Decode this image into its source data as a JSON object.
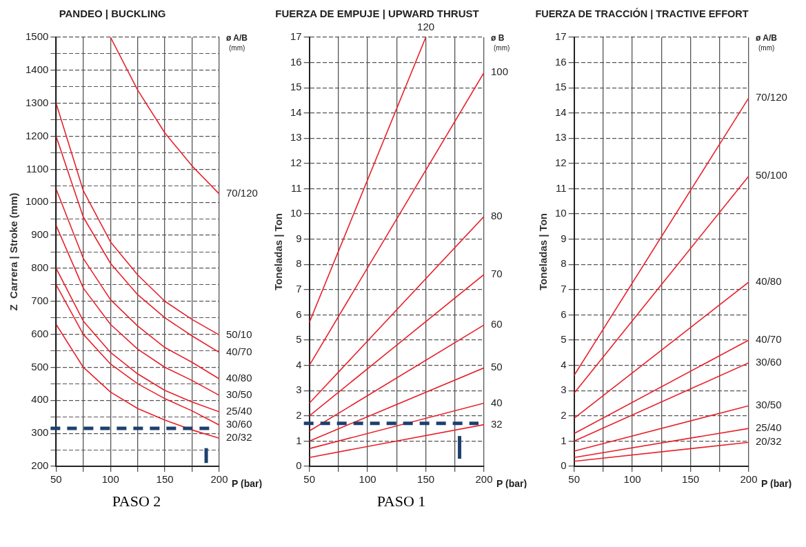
{
  "chart_data": [
    {
      "type": "line",
      "title": "PANDEO | BUCKLING",
      "xlabel": "P (bar)",
      "ylabel": "Z  Carrera | Stroke (mm)",
      "legend_title": "ø A/B (mm)",
      "annotations": [
        "PASO 2"
      ],
      "x": [
        50,
        75,
        100,
        125,
        150,
        175,
        200
      ],
      "xlim": [
        50,
        200
      ],
      "xticks": [
        50,
        {
          "value": 75,
          "label": null
        },
        100,
        {
          "value": 125,
          "label": null
        },
        150,
        {
          "value": 175,
          "label": null
        },
        200
      ],
      "ylim": [
        200,
        1500
      ],
      "yticks": [
        200,
        {
          "value": 250,
          "label": null
        },
        300,
        {
          "value": 350,
          "label": null
        },
        400,
        {
          "value": 450,
          "label": null
        },
        500,
        {
          "value": 550,
          "label": null
        },
        600,
        {
          "value": 650,
          "label": null
        },
        700,
        {
          "value": 750,
          "label": null
        },
        800,
        {
          "value": 850,
          "label": null
        },
        900,
        {
          "value": 950,
          "label": null
        },
        1000,
        {
          "value": 1050,
          "label": null
        },
        1100,
        {
          "value": 1150,
          "label": null
        },
        1200,
        {
          "value": 1250,
          "label": null
        },
        1300,
        {
          "value": 1350,
          "label": null
        },
        1400,
        {
          "value": 1450,
          "label": null
        },
        1500
      ],
      "grid": true,
      "legend": false,
      "marker": "none",
      "ref_lines": [
        {
          "axis": "y",
          "value": 315,
          "color": "#1f3f6e",
          "line_style": "dashed"
        }
      ],
      "series": [
        {
          "name": "70/120",
          "color": "#e8202a",
          "x": [
            100,
            125,
            150,
            175,
            200
          ],
          "values": [
            1500,
            1340,
            1210,
            1110,
            1025
          ]
        },
        {
          "name": "50/10",
          "color": "#e8202a",
          "values": [
            1300,
            1035,
            880,
            780,
            700,
            645,
            598
          ]
        },
        {
          "name": "40/70",
          "color": "#e8202a",
          "values": [
            1200,
            955,
            815,
            720,
            650,
            595,
            545
          ]
        },
        {
          "name": "40/80",
          "color": "#e8202a",
          "values": [
            1040,
            830,
            705,
            625,
            560,
            515,
            465
          ]
        },
        {
          "name": "30/50",
          "color": "#e8202a",
          "values": [
            930,
            740,
            630,
            555,
            500,
            460,
            415
          ]
        },
        {
          "name": "25/40",
          "color": "#e8202a",
          "values": [
            800,
            640,
            545,
            480,
            430,
            395,
            365
          ]
        },
        {
          "name": "30/60",
          "color": "#e8202a",
          "values": [
            750,
            600,
            510,
            450,
            405,
            368,
            325
          ]
        },
        {
          "name": "20/32",
          "color": "#e8202a",
          "values": [
            630,
            500,
            425,
            375,
            340,
            310,
            285
          ]
        },
        {
          "color": "#1f3f6e",
          "x": [
            188,
            188
          ],
          "values": [
            210,
            255
          ]
        }
      ]
    },
    {
      "type": "line",
      "title": "FUERZA DE EMPUJE | UPWARD THRUST",
      "xlabel": "P (bar)",
      "ylabel": "Toneladas | Ton",
      "legend_title": "ø B (mm)",
      "annotations": [
        "PASO 1"
      ],
      "x": [
        50,
        200
      ],
      "xlim": [
        50,
        200
      ],
      "xticks": [
        50,
        {
          "value": 75,
          "label": null
        },
        100,
        {
          "value": 125,
          "label": null
        },
        150,
        {
          "value": 175,
          "label": null
        },
        200
      ],
      "ylim": [
        0,
        17
      ],
      "yticks": [
        0,
        1,
        2,
        3,
        4,
        5,
        6,
        7,
        8,
        9,
        10,
        11,
        12,
        13,
        14,
        15,
        16,
        17
      ],
      "grid": true,
      "legend": false,
      "marker": "none",
      "ref_lines": [
        {
          "axis": "y",
          "value": 1.7,
          "color": "#1f3f6e",
          "line_style": "dashed"
        }
      ],
      "series": [
        {
          "name": "120",
          "color": "#e8202a",
          "x": [
            50,
            150
          ],
          "values": [
            5.7,
            17
          ]
        },
        {
          "name": "100",
          "color": "#e8202a",
          "values": [
            4,
            15.6
          ]
        },
        {
          "name": "80",
          "color": "#e8202a",
          "values": [
            2.5,
            9.9
          ]
        },
        {
          "name": "70",
          "color": "#e8202a",
          "values": [
            2,
            7.6
          ]
        },
        {
          "name": "60",
          "color": "#e8202a",
          "values": [
            1.4,
            5.6
          ]
        },
        {
          "name": "50",
          "color": "#e8202a",
          "values": [
            1,
            3.9
          ]
        },
        {
          "name": "40",
          "color": "#e8202a",
          "values": [
            0.7,
            2.5
          ]
        },
        {
          "name": "32",
          "color": "#e8202a",
          "values": [
            0.35,
            1.65
          ]
        },
        {
          "color": "#1f3f6e",
          "x": [
            179,
            179
          ],
          "values": [
            0.3,
            1.2
          ]
        }
      ]
    },
    {
      "type": "line",
      "title": "FUERZA DE TRACCIÓN | TRACTIVE EFFORT",
      "xlabel": "P (bar)",
      "ylabel": "Toneladas | Ton",
      "legend_title": "ø A/B (mm)",
      "x": [
        50,
        200
      ],
      "xlim": [
        50,
        200
      ],
      "xticks": [
        50,
        {
          "value": 75,
          "label": null
        },
        100,
        {
          "value": 125,
          "label": null
        },
        150,
        {
          "value": 175,
          "label": null
        },
        200
      ],
      "ylim": [
        0,
        17
      ],
      "yticks": [
        0,
        1,
        2,
        3,
        4,
        5,
        6,
        7,
        8,
        9,
        10,
        11,
        12,
        13,
        14,
        15,
        16,
        17
      ],
      "grid": true,
      "legend": false,
      "marker": "none",
      "series": [
        {
          "name": "70/120",
          "color": "#e8202a",
          "values": [
            3.6,
            14.6
          ]
        },
        {
          "name": "50/100",
          "color": "#e8202a",
          "values": [
            2.9,
            11.5
          ]
        },
        {
          "name": "40/80",
          "color": "#e8202a",
          "values": [
            1.9,
            7.3
          ]
        },
        {
          "name": "40/70",
          "color": "#e8202a",
          "values": [
            1.3,
            5
          ]
        },
        {
          "name": "30/60",
          "color": "#e8202a",
          "values": [
            1,
            4.1
          ]
        },
        {
          "name": "30/50",
          "color": "#e8202a",
          "values": [
            0.6,
            2.4
          ]
        },
        {
          "name": "25/40",
          "color": "#e8202a",
          "values": [
            0.35,
            1.5
          ]
        },
        {
          "name": "20/32",
          "color": "#e8202a",
          "values": [
            0.2,
            0.95
          ]
        }
      ]
    }
  ]
}
